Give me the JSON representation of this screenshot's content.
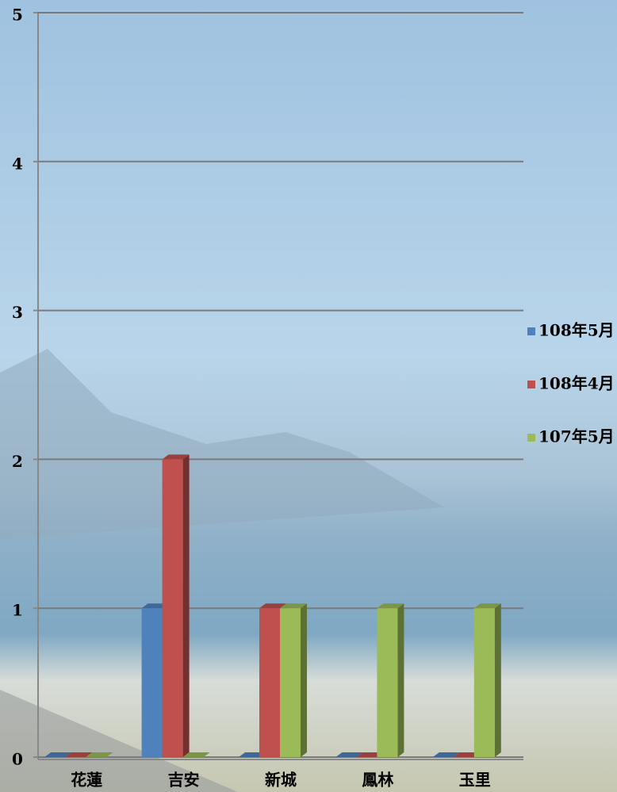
{
  "chart_data": {
    "type": "bar3d",
    "categories": [
      "花蓮",
      "吉安",
      "新城",
      "鳳林",
      "玉里"
    ],
    "series": [
      {
        "name": "108年5月",
        "color": "#4f81bd",
        "values": [
          0,
          1,
          0,
          0,
          0
        ]
      },
      {
        "name": "108年4月",
        "color": "#c0504d",
        "values": [
          0,
          2,
          1,
          0,
          0
        ]
      },
      {
        "name": "107年5月",
        "color": "#9bbb59",
        "values": [
          0,
          0,
          1,
          1,
          1
        ]
      }
    ],
    "ylim": [
      0,
      5
    ],
    "yticks": [
      0,
      1,
      2,
      3,
      4,
      5
    ],
    "grid": true,
    "legend": "right"
  }
}
